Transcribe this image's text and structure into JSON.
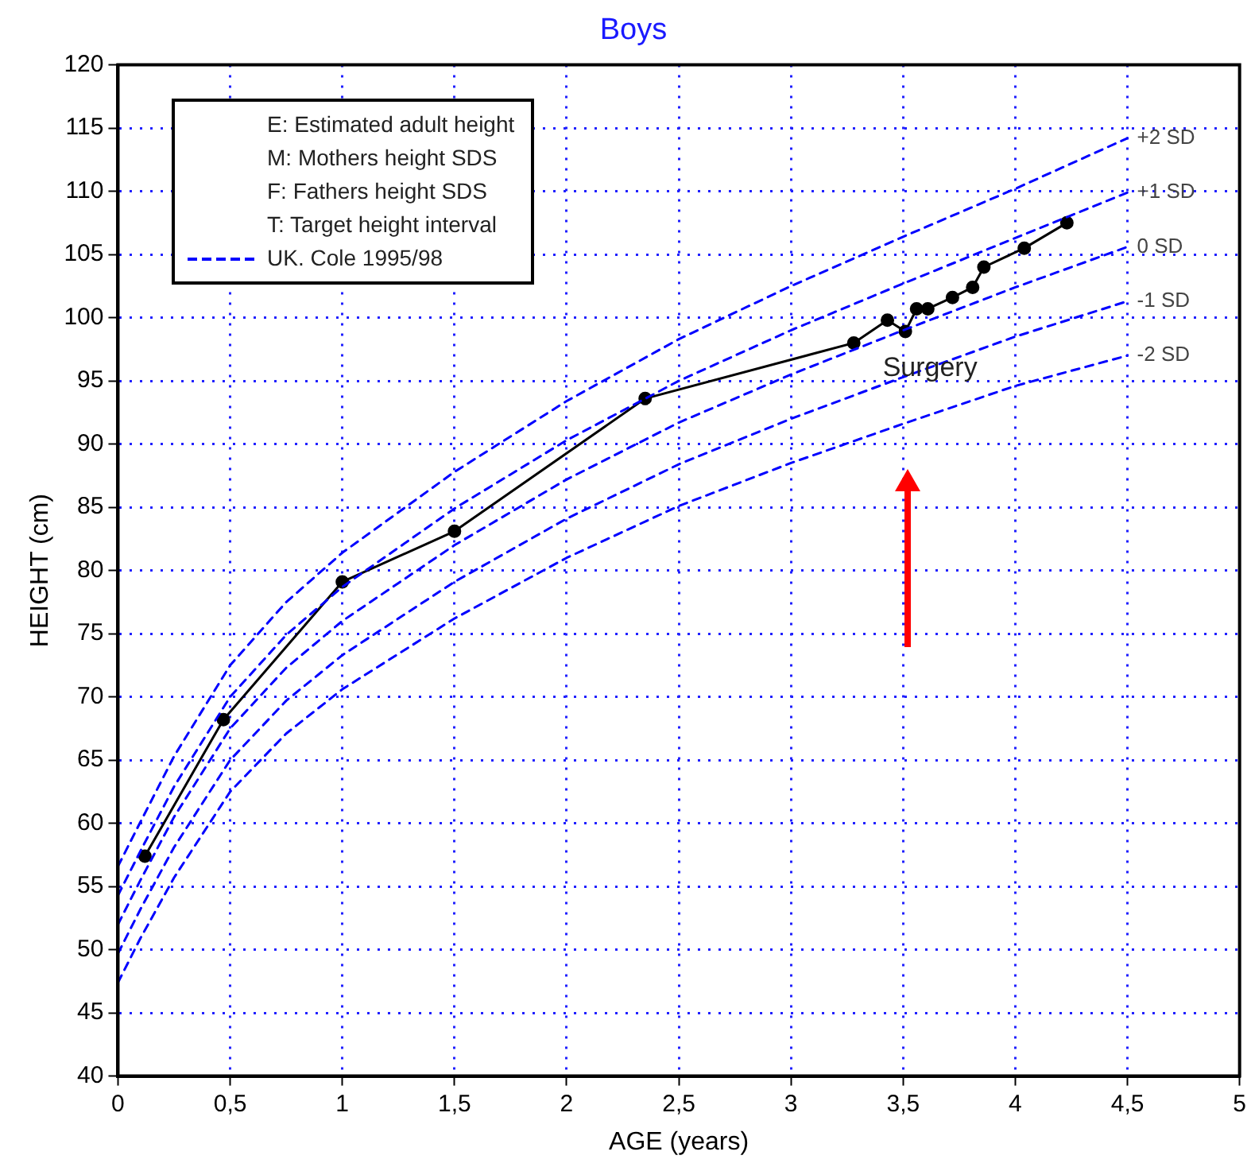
{
  "chart_data": {
    "type": "line",
    "title": "Boys",
    "xlabel": "AGE (years)",
    "ylabel": "HEIGHT (cm)",
    "annotations": [
      "E: Estimated adult height",
      "M: Mothers height SDS",
      "F: Fathers height SDS",
      "T: Target height interval",
      "UK. Cole 1995/98",
      {
        "text": "Surgery",
        "x": 3.62,
        "y": 96.0
      }
    ],
    "xlim": [
      0,
      5
    ],
    "xticks": [
      0,
      {
        "value": 0.5,
        "label": "0,5"
      },
      1,
      {
        "value": 1.5,
        "label": "1,5"
      },
      2,
      {
        "value": 2.5,
        "label": "2,5"
      },
      3,
      {
        "value": 3.5,
        "label": "3,5"
      },
      4,
      {
        "value": 4.5,
        "label": "4,5"
      },
      5
    ],
    "ylim": [
      40,
      120
    ],
    "yticks": [
      40,
      45,
      50,
      55,
      60,
      65,
      70,
      75,
      80,
      85,
      90,
      95,
      100,
      105,
      110,
      115,
      120
    ],
    "grid": true,
    "series": [
      {
        "name": "+2 SD",
        "color": "#0000ff",
        "marker": "none",
        "line_style": "dashed",
        "x": [
          0,
          0.1,
          0.25,
          0.5,
          0.75,
          1,
          1.5,
          2,
          2.5,
          3,
          3.5,
          4,
          4.5
        ],
        "values": [
          56.6,
          60.1,
          65.3,
          72.5,
          77.5,
          81.4,
          87.8,
          93.4,
          98.3,
          102.5,
          106.4,
          110.2,
          114.2
        ]
      },
      {
        "name": "+1 SD",
        "color": "#0000ff",
        "marker": "none",
        "line_style": "dashed",
        "x": [
          0,
          0.1,
          0.25,
          0.5,
          0.75,
          1,
          1.5,
          2,
          2.5,
          3,
          3.5,
          4,
          4.5
        ],
        "values": [
          54.3,
          57.8,
          62.9,
          70.0,
          74.9,
          78.7,
          84.9,
          90.3,
          95.0,
          99.0,
          102.7,
          106.3,
          109.9
        ]
      },
      {
        "name": "0 SD",
        "color": "#0000ff",
        "marker": "none",
        "line_style": "dashed",
        "x": [
          0,
          0.1,
          0.25,
          0.5,
          0.75,
          1,
          1.5,
          2,
          2.5,
          3,
          3.5,
          4,
          4.5
        ],
        "values": [
          52.0,
          55.5,
          60.5,
          67.5,
          72.3,
          76.0,
          82.0,
          87.2,
          91.7,
          95.5,
          99.0,
          102.4,
          105.6
        ]
      },
      {
        "name": "-1 SD",
        "color": "#0000ff",
        "marker": "none",
        "line_style": "dashed",
        "x": [
          0,
          0.1,
          0.25,
          0.5,
          0.75,
          1,
          1.5,
          2,
          2.5,
          3,
          3.5,
          4,
          4.5
        ],
        "values": [
          49.7,
          53.2,
          58.1,
          65.0,
          69.7,
          73.3,
          79.1,
          84.1,
          88.4,
          92.0,
          95.3,
          98.5,
          101.3
        ]
      },
      {
        "name": "-2 SD",
        "color": "#0000ff",
        "marker": "none",
        "line_style": "dashed",
        "x": [
          0,
          0.1,
          0.25,
          0.5,
          0.75,
          1,
          1.5,
          2,
          2.5,
          3,
          3.5,
          4,
          4.5
        ],
        "values": [
          47.4,
          50.9,
          55.7,
          62.5,
          67.1,
          70.6,
          76.2,
          81.0,
          85.1,
          88.5,
          91.6,
          94.6,
          97.0
        ]
      },
      {
        "color": "#000000",
        "marker": "circle",
        "line_style": "solid",
        "x": [
          0.12,
          0.47,
          1.0,
          1.5,
          2.35,
          3.28,
          3.43,
          3.51,
          3.56,
          3.61,
          3.72,
          3.81,
          3.86,
          4.04,
          4.23
        ],
        "values": [
          57.4,
          68.2,
          79.1,
          83.1,
          93.6,
          98.0,
          99.8,
          98.9,
          100.7,
          100.7,
          101.6,
          102.4,
          104.0,
          105.5,
          107.5
        ]
      }
    ]
  }
}
